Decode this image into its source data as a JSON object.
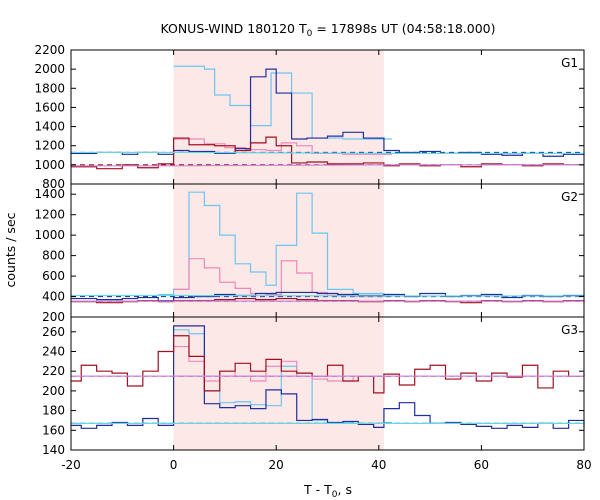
{
  "chart_data": {
    "type": "line",
    "title": "KONUS-WIND 180120 T",
    "title_sub": "0",
    "title_rest": " = 17898s UT (04:58:18.000)",
    "xlabel": "T - T",
    "xlabel_sub": "0",
    "xlabel_rest": ", s",
    "ylabel": "counts / sec",
    "xlim": [
      -20,
      80
    ],
    "xticks": [
      -20,
      0,
      20,
      40,
      60,
      80
    ],
    "shaded_interval": [
      0,
      41
    ],
    "colors": {
      "shade": "#fde8e8",
      "light_blue": "#6cc5f0",
      "dark_blue": "#1f2f9f",
      "pink": "#ee88bb",
      "dark_red": "#a01020",
      "violet": "#cc88dd",
      "cyan": "#66d8e0"
    },
    "panels": [
      {
        "label": "G1",
        "ylim": [
          800,
          2200
        ],
        "yticks": [
          800,
          1000,
          1200,
          1400,
          1600,
          1800,
          2000,
          2200
        ],
        "series": [
          {
            "role": "fine-blue",
            "color": "#6cc5f0",
            "x": [
              0,
              6,
              8,
              11,
              15,
              19,
              23,
              27,
              33,
              41
            ],
            "y": [
              2030,
              2000,
              1730,
              1620,
              1410,
              1960,
              1750,
              1280,
              1270,
              1270
            ]
          },
          {
            "role": "fine-red",
            "color": "#ee88bb",
            "x": [
              0,
              6,
              10,
              14,
              18,
              21,
              24,
              27,
              33,
              41
            ],
            "y": [
              1270,
              1220,
              1180,
              1160,
              1150,
              1230,
              1200,
              1120,
              1110,
              1110
            ]
          },
          {
            "role": "coarse-blue",
            "color": "#1f2f9f",
            "x": [
              -20,
              -15,
              -10,
              -7,
              -3,
              0,
              3,
              8,
              12,
              15,
              18,
              20,
              23,
              26,
              30,
              33,
              37,
              41,
              44,
              48,
              52,
              56,
              60,
              64,
              68,
              72,
              76,
              80
            ],
            "y": [
              1120,
              1130,
              1110,
              1130,
              1110,
              1150,
              1140,
              1120,
              1170,
              1920,
              2000,
              1750,
              1270,
              1280,
              1300,
              1340,
              1280,
              1150,
              1130,
              1140,
              1120,
              1130,
              1110,
              1100,
              1120,
              1090,
              1110,
              1100
            ]
          },
          {
            "role": "coarse-red",
            "color": "#a01020",
            "x": [
              -20,
              -15,
              -10,
              -7,
              -3,
              0,
              3,
              8,
              12,
              15,
              18,
              20,
              23,
              26,
              30,
              33,
              37,
              41,
              44,
              48,
              52,
              56,
              60,
              64,
              68,
              72,
              76,
              80
            ],
            "y": [
              980,
              960,
              1000,
              970,
              1010,
              1280,
              1210,
              1200,
              1150,
              1230,
              1290,
              1200,
              1020,
              1030,
              1010,
              1010,
              1020,
              990,
              1010,
              990,
              1000,
              980,
              1010,
              1000,
              990,
              1010,
              1000,
              1000
            ]
          },
          {
            "role": "bg-blue",
            "color": "#1f2f9f",
            "dashed": true,
            "x": [
              -20,
              80
            ],
            "y": [
              1130,
              1130
            ]
          },
          {
            "role": "bg-red",
            "color": "#a01020",
            "dashed": true,
            "x": [
              -20,
              80
            ],
            "y": [
              1000,
              1000
            ]
          },
          {
            "role": "fit-cyan",
            "color": "#66d8e0",
            "x": [
              -20,
              0,
              41,
              80
            ],
            "y": [
              1130,
              1130,
              1120,
              1120
            ]
          },
          {
            "role": "fit-violet",
            "color": "#cc88dd",
            "x": [
              -20,
              0,
              41,
              80
            ],
            "y": [
              990,
              990,
              1000,
              1000
            ]
          }
        ]
      },
      {
        "label": "G2",
        "ylim": [
          200,
          1500
        ],
        "yticks": [
          200,
          400,
          600,
          800,
          1000,
          1200,
          1400
        ],
        "series": [
          {
            "role": "fine-blue",
            "color": "#6cc5f0",
            "x": [
              -3,
              0,
              3,
              6,
              9,
              12,
              15,
              18,
              20,
              24,
              27,
              30,
              35,
              41
            ],
            "y": [
              420,
              470,
              1420,
              1290,
              1000,
              720,
              640,
              510,
              900,
              1410,
              1020,
              470,
              430,
              420
            ]
          },
          {
            "role": "fine-red",
            "color": "#ee88bb",
            "x": [
              0,
              3,
              6,
              9,
              12,
              15,
              18,
              21,
              24,
              27,
              30,
              35,
              41
            ],
            "y": [
              470,
              770,
              680,
              540,
              480,
              430,
              420,
              750,
              630,
              440,
              410,
              400,
              400
            ]
          },
          {
            "role": "coarse-blue",
            "color": "#1f2f9f",
            "x": [
              -20,
              -15,
              -10,
              -7,
              -3,
              0,
              4,
              8,
              12,
              16,
              20,
              24,
              28,
              32,
              36,
              41,
              45,
              48,
              53,
              56,
              60,
              64,
              68,
              72,
              76,
              80
            ],
            "y": [
              380,
              370,
              380,
              390,
              360,
              390,
              400,
              420,
              410,
              430,
              440,
              440,
              430,
              420,
              410,
              420,
              400,
              430,
              400,
              410,
              420,
              390,
              410,
              400,
              410,
              400
            ]
          },
          {
            "role": "coarse-red",
            "color": "#a01020",
            "x": [
              -20,
              -15,
              -10,
              -7,
              -3,
              0,
              4,
              8,
              12,
              16,
              20,
              24,
              28,
              32,
              36,
              41,
              45,
              48,
              53,
              56,
              60,
              64,
              68,
              72,
              76,
              80
            ],
            "y": [
              350,
              340,
              350,
              360,
              350,
              360,
              360,
              370,
              380,
              370,
              380,
              370,
              360,
              360,
              350,
              360,
              350,
              360,
              350,
              340,
              360,
              350,
              360,
              350,
              360,
              350
            ]
          },
          {
            "role": "bg-blue",
            "color": "#1f2f9f",
            "dashed": true,
            "x": [
              -20,
              80
            ],
            "y": [
              400,
              400
            ]
          },
          {
            "role": "bg-red",
            "color": "#a01020",
            "dashed": true,
            "x": [
              -20,
              80
            ],
            "y": [
              355,
              355
            ]
          },
          {
            "role": "fit-cyan",
            "color": "#66d8e0",
            "x": [
              -20,
              0,
              41,
              80
            ],
            "y": [
              410,
              410,
              405,
              405
            ]
          },
          {
            "role": "fit-violet",
            "color": "#cc88dd",
            "x": [
              -20,
              0,
              41,
              80
            ],
            "y": [
              355,
              355,
              355,
              355
            ]
          }
        ]
      },
      {
        "label": "G3",
        "ylim": [
          140,
          275
        ],
        "yticks": [
          140,
          160,
          180,
          200,
          220,
          240,
          260
        ],
        "series": [
          {
            "role": "fine-blue",
            "color": "#6cc5f0",
            "x": [
              0,
              3,
              6,
              9,
              12,
              15,
              18,
              21,
              24,
              27,
              30,
              35,
              41
            ],
            "y": [
              262,
              258,
              200,
              188,
              189,
              186,
              185,
              225,
              218,
              170,
              168,
              167,
              168
            ]
          },
          {
            "role": "fine-red",
            "color": "#ee88bb",
            "x": [
              0,
              3,
              6,
              9,
              12,
              15,
              18,
              21,
              24,
              27,
              30,
              35,
              41
            ],
            "y": [
              245,
              230,
              210,
              220,
              215,
              210,
              225,
              230,
              215,
              212,
              210,
              215,
              215
            ]
          },
          {
            "role": "coarse-blue",
            "color": "#1f2f9f",
            "x": [
              -20,
              -18,
              -15,
              -12,
              -9,
              -6,
              -3,
              0,
              6,
              9,
              12,
              15,
              18,
              21,
              24,
              27,
              30,
              33,
              36,
              39,
              41,
              44,
              47,
              50,
              53,
              56,
              59,
              62,
              65,
              68,
              71,
              74,
              77,
              80
            ],
            "y": [
              165,
              162,
              165,
              168,
              165,
              172,
              165,
              266,
              187,
              183,
              185,
              182,
              201,
              197,
              170,
              171,
              168,
              169,
              166,
              163,
              182,
              188,
              175,
              167,
              168,
              166,
              164,
              162,
              165,
              163,
              167,
              162,
              170,
              162
            ]
          },
          {
            "role": "coarse-red",
            "color": "#a01020",
            "x": [
              -20,
              -18,
              -15,
              -12,
              -9,
              -6,
              -3,
              0,
              3,
              6,
              9,
              12,
              15,
              18,
              21,
              24,
              27,
              30,
              33,
              36,
              39,
              41,
              44,
              47,
              50,
              53,
              56,
              59,
              62,
              65,
              68,
              71,
              74,
              77,
              80
            ],
            "y": [
              210,
              226,
              220,
              218,
              205,
              220,
              240,
              256,
              235,
              200,
              220,
              228,
              220,
              232,
              220,
              218,
              215,
              226,
              210,
              215,
              198,
              217,
              206,
              222,
              226,
              212,
              218,
              210,
              218,
              214,
              226,
              203,
              220,
              215,
              218
            ]
          },
          {
            "role": "bg-blue",
            "color": "#1f2f9f",
            "dashed": true,
            "x": [
              -20,
              80
            ],
            "y": [
              167,
              167
            ]
          },
          {
            "role": "bg-red",
            "color": "#a01020",
            "dashed": true,
            "x": [
              -20,
              80
            ],
            "y": [
              215,
              215
            ]
          },
          {
            "role": "fit-cyan",
            "color": "#66d8e0",
            "x": [
              -20,
              0,
              41,
              80
            ],
            "y": [
              167,
              167,
              167,
              167
            ]
          },
          {
            "role": "fit-violet",
            "color": "#cc88dd",
            "x": [
              -20,
              0,
              41,
              80
            ],
            "y": [
              215,
              215,
              215,
              215
            ]
          }
        ]
      }
    ]
  }
}
